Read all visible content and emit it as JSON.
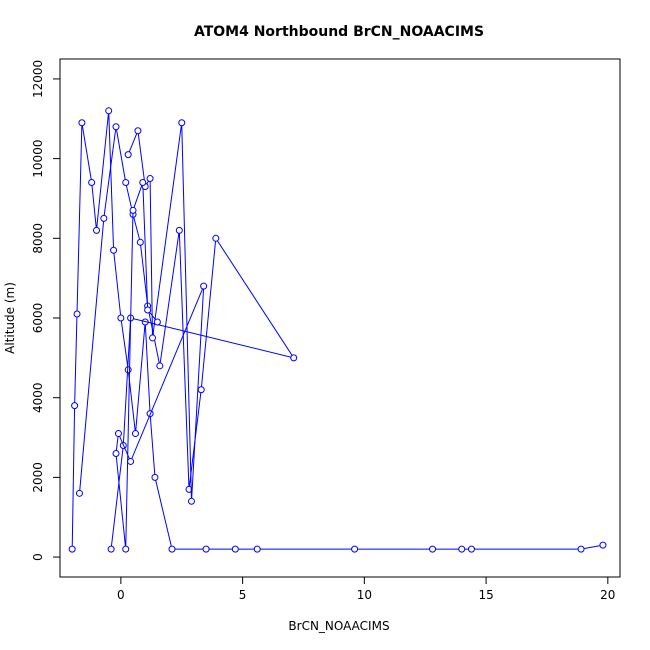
{
  "chart_data": {
    "type": "line",
    "title": "ATOM4 Northbound BrCN_NOAACIMS",
    "xlabel": "BrCN_NOAACIMS",
    "ylabel": "Altitude (m)",
    "xlim": [
      -2.5,
      20.5
    ],
    "ylim": [
      -500,
      12500
    ],
    "xticks": [
      0,
      5,
      10,
      15,
      20
    ],
    "xtick_labels": [
      "0",
      "5",
      "10",
      "15",
      "20"
    ],
    "yticks": [
      0,
      2000,
      4000,
      6000,
      8000,
      10000,
      12000
    ],
    "ytick_labels": [
      "0",
      "2000",
      "4000",
      "6000",
      "8000",
      "10000",
      "12000"
    ],
    "grid": false,
    "legend": "none",
    "series_color": "#0000ff",
    "series": [
      {
        "x": [
          -2.0,
          -1.9,
          -1.8,
          -1.6,
          -1.2,
          -1.0,
          -0.5,
          -0.3,
          0.0,
          0.3,
          0.6,
          1.0,
          1.2,
          1.4,
          2.1,
          3.5,
          4.7,
          5.6,
          9.6,
          12.8,
          14.0,
          14.4,
          18.9,
          19.8
        ],
        "y": [
          200,
          3800,
          6100,
          10900,
          9400,
          8200,
          11200,
          7700,
          6000,
          4700,
          3100,
          5900,
          3600,
          2000,
          200,
          200,
          200,
          200,
          200,
          200,
          200,
          200,
          200,
          300
        ]
      },
      {
        "x": [
          -1.7,
          -0.7,
          -0.2,
          0.2,
          0.5,
          0.8,
          1.1,
          1.6,
          2.4,
          2.8,
          3.3,
          3.9,
          7.1,
          0.4,
          0.1,
          -0.4
        ],
        "y": [
          1600,
          8500,
          10800,
          9400,
          8600,
          7900,
          6300,
          4800,
          8200,
          1700,
          4200,
          8000,
          5000,
          6000,
          2800,
          200
        ]
      },
      {
        "x": [
          0.3,
          0.7,
          1.0,
          1.2,
          1.3,
          2.5,
          2.9,
          3.4,
          0.4,
          -0.1,
          -0.2,
          0.2,
          0.5,
          0.9,
          1.1,
          1.5
        ],
        "y": [
          10100,
          10700,
          9300,
          9500,
          5500,
          10900,
          1400,
          6800,
          2400,
          3100,
          2600,
          200,
          8700,
          9400,
          6200,
          5900
        ]
      }
    ]
  }
}
